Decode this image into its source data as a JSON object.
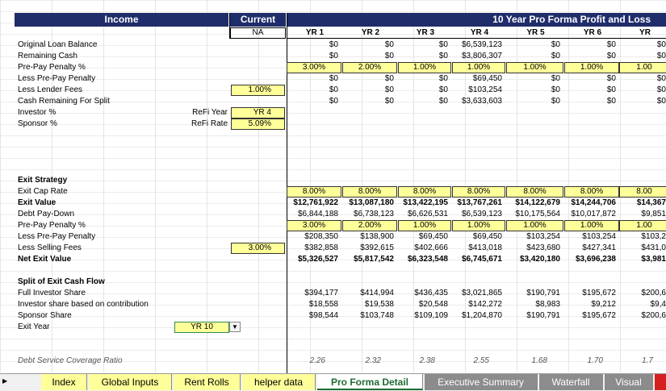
{
  "header": {
    "income": "Income",
    "current": "Current",
    "pro_forma": "10 Year Pro Forma Profit and Loss",
    "na": "NA"
  },
  "years": [
    "YR 1",
    "YR 2",
    "YR 3",
    "YR 4",
    "YR 5",
    "YR 6",
    "YR"
  ],
  "income_rows": [
    {
      "label": "Original Loan Balance",
      "values": [
        "$0",
        "$0",
        "$0",
        "$6,539,123",
        "$0",
        "$0",
        "$0"
      ]
    },
    {
      "label": "Remaining Cash",
      "values": [
        "$0",
        "$0",
        "$0",
        "$3,806,307",
        "$0",
        "$0",
        "$0"
      ]
    },
    {
      "label": "Pre-Pay Penalty %",
      "values": [
        "3.00%",
        "2.00%",
        "1.00%",
        "1.00%",
        "1.00%",
        "1.00%",
        "1.00"
      ]
    },
    {
      "label": "Less Pre-Pay Penalty",
      "values": [
        "$0",
        "$0",
        "$0",
        "$69,450",
        "$0",
        "$0",
        "$0"
      ]
    },
    {
      "label": "Less Lender Fees",
      "current": "1.00%",
      "values": [
        "$0",
        "$0",
        "$0",
        "$103,254",
        "$0",
        "$0",
        "$0"
      ]
    },
    {
      "label": "Cash Remaining For Split",
      "values": [
        "$0",
        "$0",
        "$0",
        "$3,633,603",
        "$0",
        "$0",
        "$0"
      ]
    },
    {
      "label": "Investor %",
      "sub": "ReFi Year",
      "current": "YR 4",
      "values": []
    },
    {
      "label": "Sponsor %",
      "sub": "ReFi Rate",
      "current": "5.09%",
      "values": []
    }
  ],
  "exit_title": "Exit Strategy",
  "exit_rows": [
    {
      "label": "Exit Cap Rate",
      "values": [
        "8.00%",
        "8.00%",
        "8.00%",
        "8.00%",
        "8.00%",
        "8.00%",
        "8.00"
      ]
    },
    {
      "label": "Exit Value",
      "bold": true,
      "values": [
        "$12,761,922",
        "$13,087,180",
        "$13,422,195",
        "$13,767,261",
        "$14,122,679",
        "$14,244,706",
        "$14,367"
      ]
    },
    {
      "label": "Debt Pay-Down",
      "values": [
        "$6,844,188",
        "$6,738,123",
        "$6,626,531",
        "$6,539,123",
        "$10,175,564",
        "$10,017,872",
        "$9,851"
      ]
    },
    {
      "label": "Pre-Pay Penalty %",
      "values": [
        "3.00%",
        "2.00%",
        "1.00%",
        "1.00%",
        "1.00%",
        "1.00%",
        "1.00"
      ]
    },
    {
      "label": "Less Pre-Pay Penalty",
      "values": [
        "$208,350",
        "$138,900",
        "$69,450",
        "$69,450",
        "$103,254",
        "$103,254",
        "$103,2"
      ]
    },
    {
      "label": "Less Selling Fees",
      "current": "3.00%",
      "values": [
        "$382,858",
        "$392,615",
        "$402,666",
        "$413,018",
        "$423,680",
        "$427,341",
        "$431,0"
      ]
    },
    {
      "label": "Net Exit Value",
      "bold": true,
      "values": [
        "$5,326,527",
        "$5,817,542",
        "$6,323,548",
        "$6,745,671",
        "$3,420,180",
        "$3,696,238",
        "$3,981"
      ]
    }
  ],
  "split_title": "Split of Exit Cash Flow",
  "split_rows": [
    {
      "label": "Full Investor Share",
      "values": [
        "$394,177",
        "$414,994",
        "$436,435",
        "$3,021,865",
        "$190,791",
        "$195,672",
        "$200,6"
      ]
    },
    {
      "label": "Investor share based on contribution",
      "values": [
        "$18,558",
        "$19,538",
        "$20,548",
        "$142,272",
        "$8,983",
        "$9,212",
        "$9,4"
      ]
    },
    {
      "label": "Sponsor Share",
      "values": [
        "$98,544",
        "$103,748",
        "$109,109",
        "$1,204,870",
        "$190,791",
        "$195,672",
        "$200,6"
      ]
    },
    {
      "label": "Exit Year",
      "current": "YR 10",
      "values": []
    }
  ],
  "dscr": {
    "label": "Debt Service Coverage Ratio",
    "values": [
      "2.26",
      "2.32",
      "2.38",
      "2.55",
      "1.68",
      "1.70",
      "1.7"
    ]
  },
  "tabs": [
    "Index",
    "Global Inputs",
    "Rent Rolls",
    "helper data",
    "Pro Forma Detail",
    "Executive Summary",
    "Waterfall",
    "Visual"
  ],
  "active_tab": "Pro Forma Detail",
  "colors": {
    "header_bg": "#1f2d6b",
    "input_bg": "#ffff99",
    "tab_yellow": "#ffff99",
    "tab_gray": "#8c8c8c",
    "active_tab_text": "#1e6b30"
  }
}
